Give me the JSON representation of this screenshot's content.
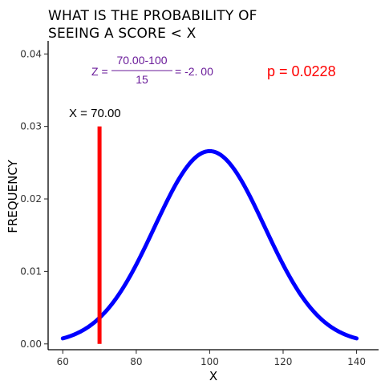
{
  "colors": {
    "curve": "#0000ff",
    "marker": "#ff0000",
    "formula": "#6a1b9a",
    "p_value": "#ff0000"
  },
  "chart_data": {
    "type": "line",
    "title_line1": "WHAT IS THE PROBABILITY OF",
    "title_line2": "SEEING A SCORE < X",
    "xlabel": "X",
    "ylabel": "FREQUENCY",
    "xlim": [
      56,
      146
    ],
    "ylim": [
      -0.0008,
      0.0418
    ],
    "x_ticks": [
      60,
      80,
      100,
      120,
      140
    ],
    "x_tick_labels": [
      "60",
      "80",
      "100",
      "120",
      "140"
    ],
    "y_ticks": [
      0.0,
      0.01,
      0.02,
      0.03,
      0.04
    ],
    "y_tick_labels": [
      "0.00",
      "0.01",
      "0.02",
      "0.03",
      "0.04"
    ],
    "grid": false,
    "series": [
      {
        "distribution": "normal",
        "mean": 100,
        "sd": 15,
        "x_range": [
          60,
          140
        ],
        "color": "#0000ff"
      }
    ],
    "marker_line": {
      "x": 70,
      "y_range": [
        0.0,
        0.03
      ],
      "color": "#ff0000"
    },
    "annotations": {
      "x_label": "X =  70.00",
      "z_prefix": "Z =",
      "z_numerator": "70.00-100",
      "z_denominator": "15",
      "z_result": "= -2. 00",
      "p_value": "p =  0.0228"
    }
  }
}
